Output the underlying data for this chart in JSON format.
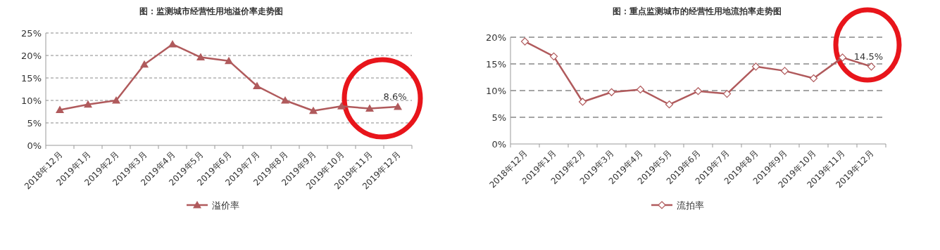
{
  "chart_data": [
    {
      "type": "line",
      "title": "图：监测城市经营性用地溢价率走势图",
      "categories": [
        "2018年12月",
        "2019年1月",
        "2019年2月",
        "2019年3月",
        "2019年4月",
        "2019年5月",
        "2019年6月",
        "2019年7月",
        "2019年8月",
        "2019年9月",
        "2019年10月",
        "2019年11月",
        "2019年12月"
      ],
      "series": [
        {
          "name": "溢价率",
          "color": "#b05a5c",
          "values": [
            7.9,
            9.1,
            10.0,
            18.0,
            22.5,
            19.6,
            18.8,
            13.2,
            10.0,
            7.7,
            8.7,
            8.2,
            8.6
          ],
          "value_labels": [
            null,
            null,
            null,
            null,
            null,
            null,
            null,
            null,
            null,
            null,
            null,
            null,
            "8.6%"
          ]
        }
      ],
      "marker": "triangle",
      "ylim": [
        0,
        25
      ],
      "yticks": [
        {
          "value": 0,
          "label": "0%"
        },
        {
          "value": 5,
          "label": "5%"
        },
        {
          "value": 10,
          "label": "10%"
        },
        {
          "value": 15,
          "label": "15%"
        },
        {
          "value": 20,
          "label": "20%"
        },
        {
          "value": 25,
          "label": "25%"
        }
      ],
      "grid": "y",
      "legend": "bottom"
    },
    {
      "type": "line",
      "title": "图：重点监测城市的经营性用地流拍率走势图",
      "categories": [
        "2018年12月",
        "2019年1月",
        "2019年2月",
        "2019年3月",
        "2019年4月",
        "2019年5月",
        "2019年6月",
        "2019年7月",
        "2019年8月",
        "2019年9月",
        "2019年10月",
        "2019年11月",
        "2019年12月"
      ],
      "series": [
        {
          "name": "流拍率",
          "color": "#b05a5c",
          "values": [
            19.2,
            16.4,
            7.9,
            9.7,
            10.2,
            7.4,
            9.9,
            9.4,
            14.5,
            13.7,
            12.3,
            16.2,
            14.5
          ],
          "value_labels": [
            null,
            null,
            null,
            null,
            null,
            null,
            null,
            null,
            null,
            null,
            null,
            null,
            "14.5%"
          ]
        }
      ],
      "marker": "diamond",
      "ylim": [
        0,
        20
      ],
      "yticks": [
        {
          "value": 0,
          "label": "0%"
        },
        {
          "value": 5,
          "label": "5%"
        },
        {
          "value": 10,
          "label": "10%"
        },
        {
          "value": 15,
          "label": "15%"
        },
        {
          "value": 20,
          "label": "20%"
        }
      ],
      "grid": "y",
      "legend": "bottom"
    }
  ]
}
